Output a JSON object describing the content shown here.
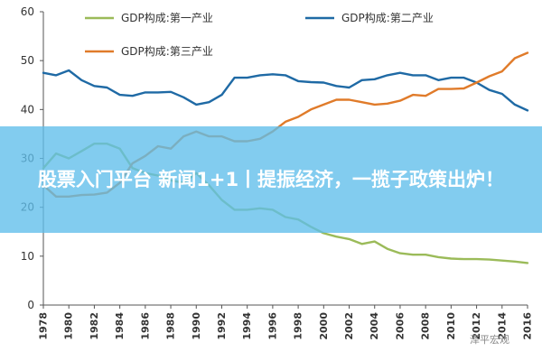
{
  "chart_data": {
    "type": "line",
    "title": "",
    "xlabel": "",
    "ylabel": "",
    "ylim": [
      0,
      60
    ],
    "yticks": [
      0,
      10,
      20,
      30,
      40,
      50,
      60
    ],
    "xlim": [
      1978,
      2016
    ],
    "xticks": [
      1978,
      1980,
      1982,
      1984,
      1986,
      1988,
      1990,
      1992,
      1994,
      1996,
      1998,
      2000,
      2002,
      2004,
      2006,
      2008,
      2010,
      2012,
      2014,
      2016
    ],
    "grid": false,
    "legend": "top",
    "x": [
      1978,
      1979,
      1980,
      1981,
      1982,
      1983,
      1984,
      1985,
      1986,
      1987,
      1988,
      1989,
      1990,
      1991,
      1992,
      1993,
      1994,
      1995,
      1996,
      1997,
      1998,
      1999,
      2000,
      2001,
      2002,
      2003,
      2004,
      2005,
      2006,
      2007,
      2008,
      2009,
      2010,
      2011,
      2012,
      2013,
      2014,
      2015,
      2016
    ],
    "series": [
      {
        "name": "GDP构成:第一产业",
        "color": "#9bbb59",
        "values": [
          28.0,
          31.0,
          30.0,
          31.5,
          33.0,
          33.0,
          32.0,
          28.0,
          27.0,
          26.5,
          25.5,
          25.0,
          27.0,
          24.5,
          21.5,
          19.5,
          19.5,
          19.8,
          19.5,
          18.0,
          17.5,
          16.0,
          14.7,
          14.0,
          13.5,
          12.5,
          13.0,
          11.5,
          10.6,
          10.3,
          10.3,
          9.8,
          9.5,
          9.4,
          9.4,
          9.3,
          9.1,
          8.9,
          8.6
        ]
      },
      {
        "name": "GDP构成:第二产业",
        "color": "#1f6aa5",
        "values": [
          47.5,
          47.0,
          48.0,
          46.0,
          44.8,
          44.5,
          43.0,
          42.8,
          43.5,
          43.5,
          43.6,
          42.5,
          41.0,
          41.5,
          43.0,
          46.5,
          46.5,
          47.0,
          47.2,
          47.0,
          45.8,
          45.6,
          45.5,
          44.8,
          44.5,
          46.0,
          46.2,
          47.0,
          47.5,
          47.0,
          47.0,
          46.0,
          46.5,
          46.5,
          45.5,
          44.0,
          43.2,
          41.0,
          39.8
        ]
      },
      {
        "name": "GDP构成:第三产业",
        "color": "#e07b2a",
        "values": [
          24.5,
          22.2,
          22.2,
          22.5,
          22.6,
          23.0,
          25.0,
          29.0,
          30.5,
          32.5,
          32.0,
          34.5,
          35.5,
          34.5,
          34.5,
          33.5,
          33.5,
          34.0,
          35.5,
          37.5,
          38.5,
          40.0,
          41.0,
          42.0,
          42.0,
          41.5,
          41.0,
          41.2,
          41.8,
          43.0,
          42.8,
          44.2,
          44.2,
          44.3,
          45.5,
          46.8,
          47.8,
          50.5,
          51.6
        ]
      }
    ]
  },
  "overlay": {
    "headline": "股票入门平台 新闻1+1丨提振经济，一揽子政策出炉！"
  },
  "watermark": {
    "text": "泽平宏观"
  }
}
